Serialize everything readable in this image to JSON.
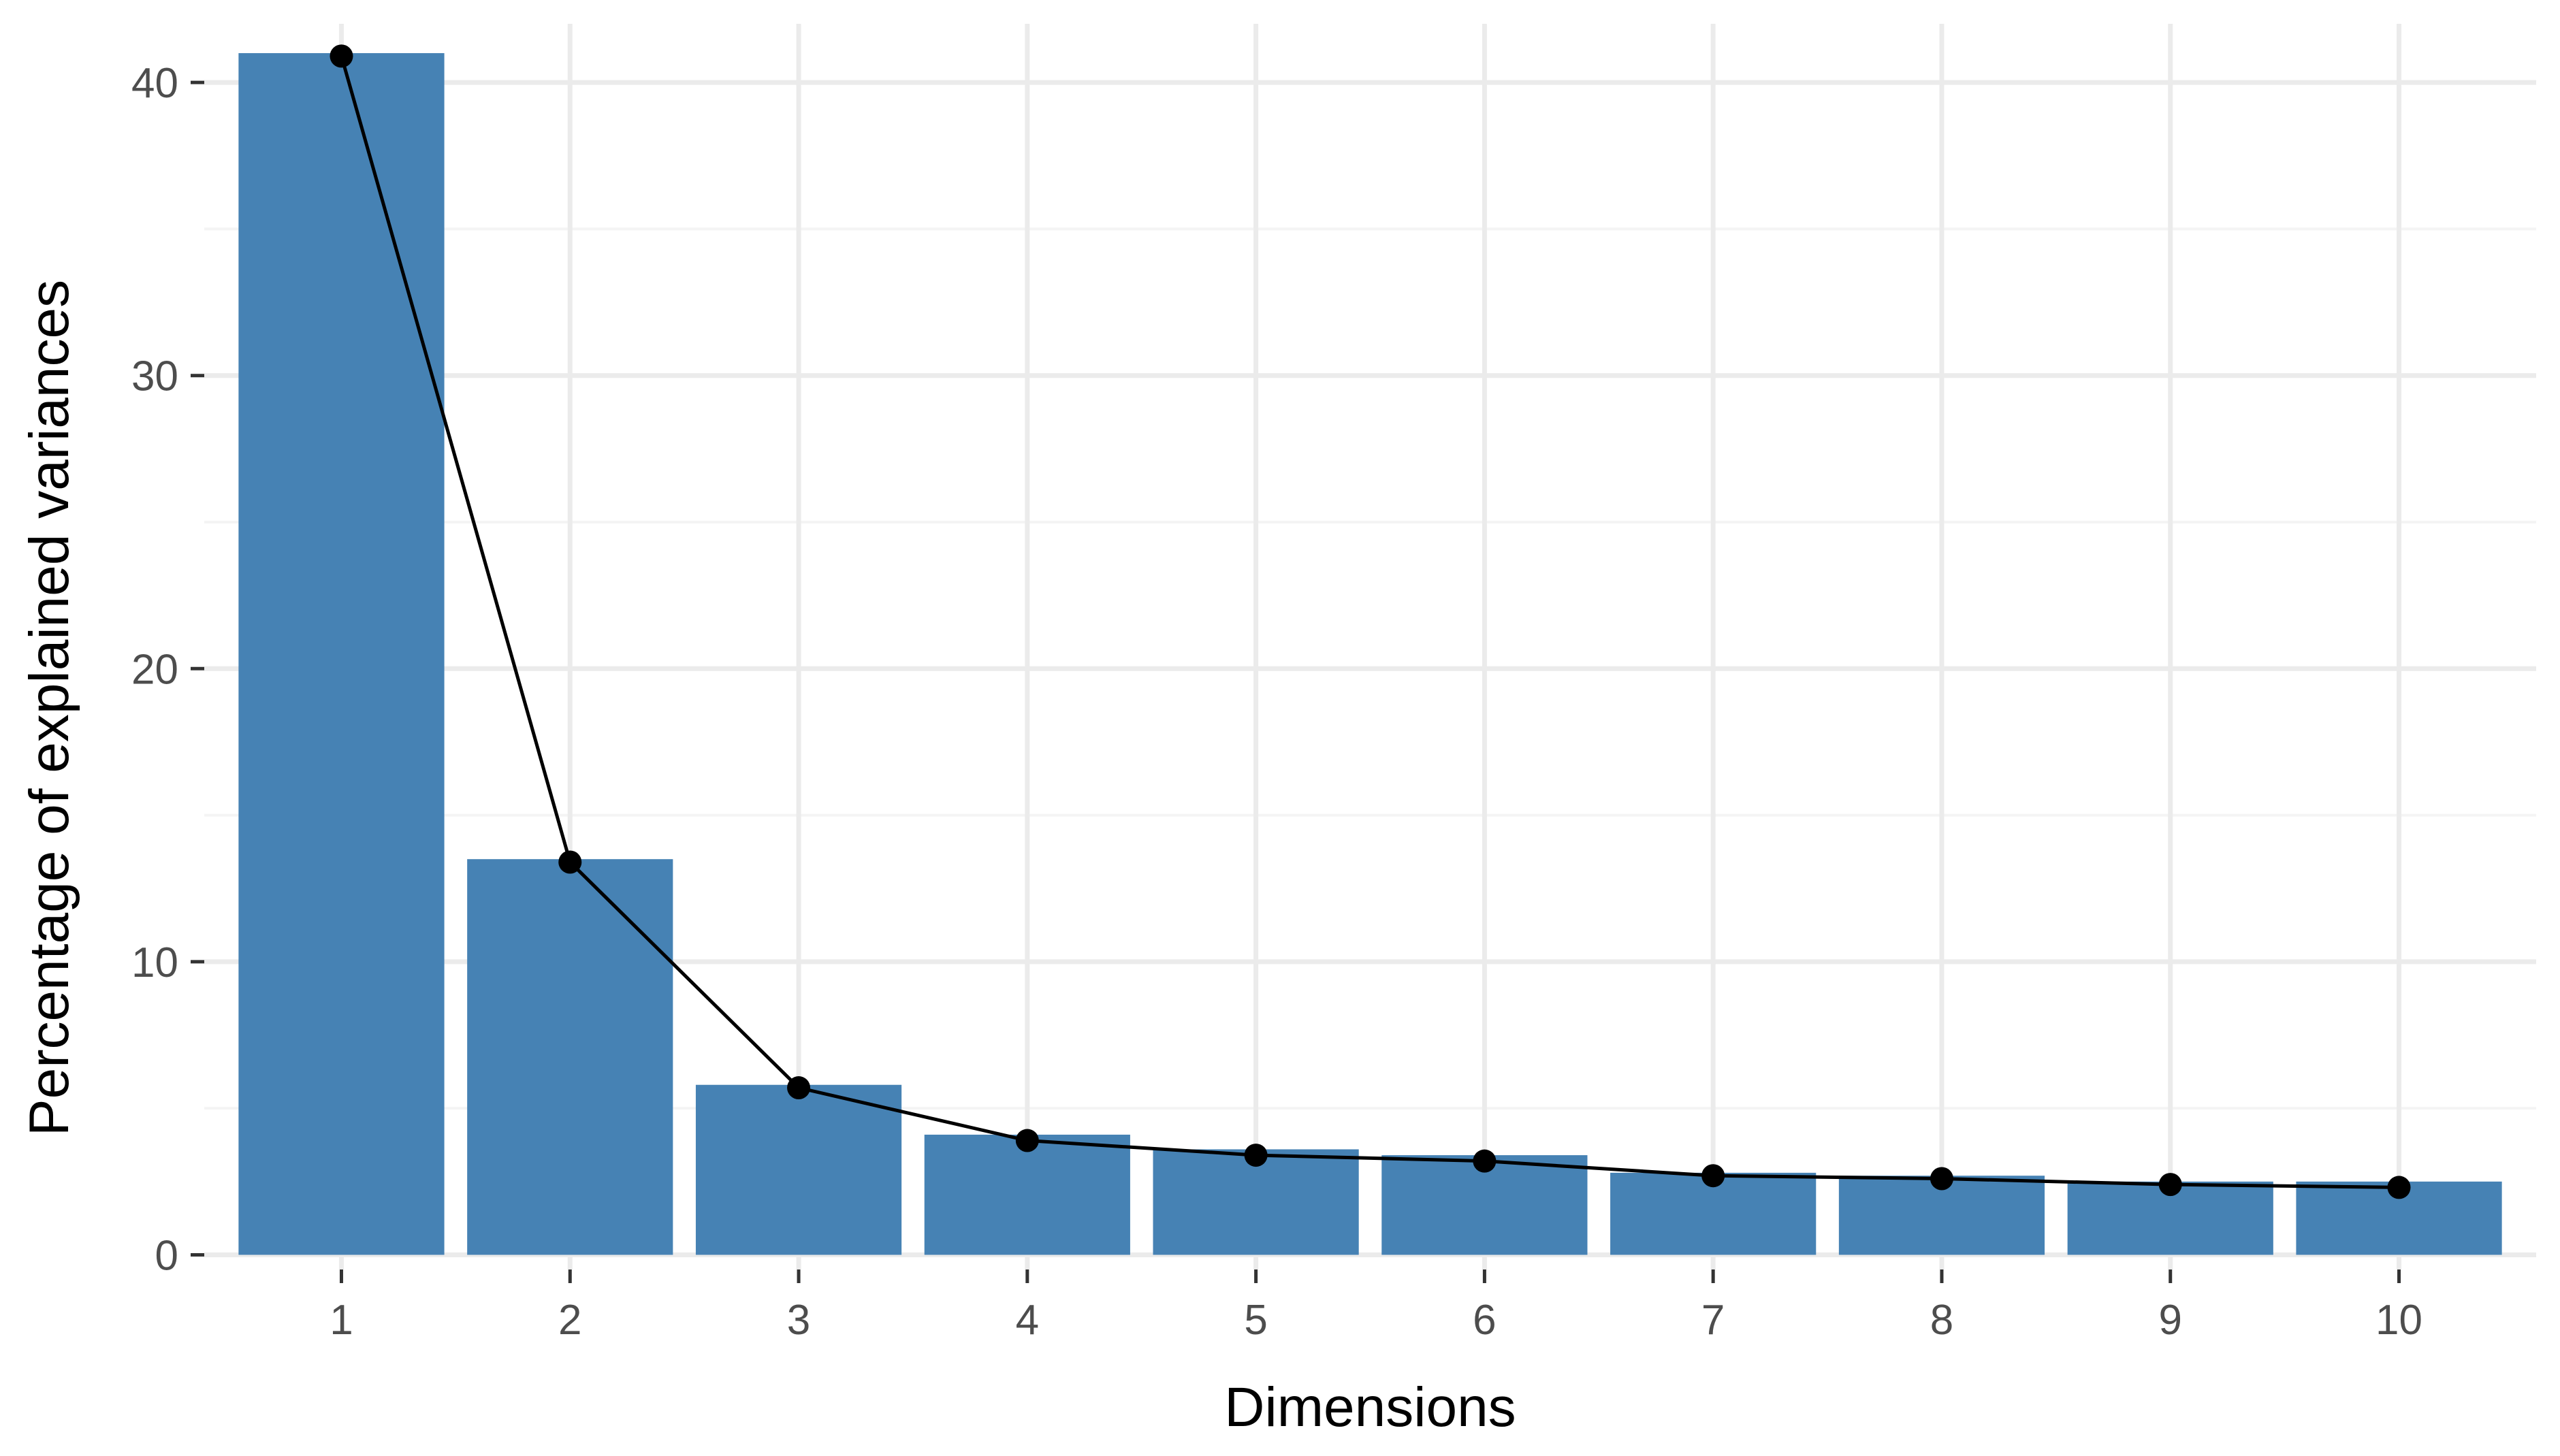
{
  "chart_data": {
    "type": "bar",
    "title": "",
    "xlabel": "Dimensions",
    "ylabel": "Percentage of explained variances",
    "categories": [
      "1",
      "2",
      "3",
      "4",
      "5",
      "6",
      "7",
      "8",
      "9",
      "10"
    ],
    "values": [
      41.0,
      13.5,
      5.8,
      4.1,
      3.6,
      3.4,
      2.8,
      2.7,
      2.5,
      2.5
    ],
    "line_overlay": {
      "values": [
        40.9,
        13.4,
        5.7,
        3.9,
        3.4,
        3.2,
        2.7,
        2.6,
        2.4,
        2.3
      ],
      "color": "#000000",
      "markers": true
    },
    "ylim": [
      -0.5,
      42
    ],
    "yticks": [
      0,
      10,
      20,
      30,
      40
    ],
    "grid": true,
    "bar_color": "#4682b4",
    "background": "#ffffff",
    "grid_color": "#ebebeb"
  }
}
